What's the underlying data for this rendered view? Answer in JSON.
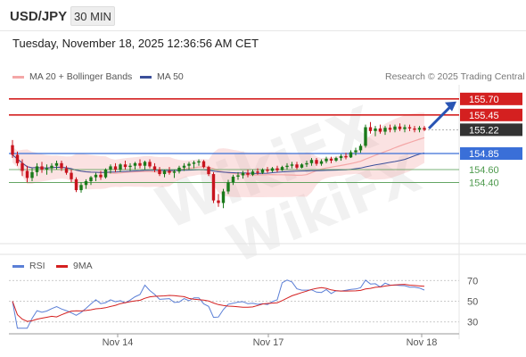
{
  "header": {
    "symbol": "USD/JPY",
    "timeframe": "30 MIN",
    "datetime": "Tuesday, November 18, 2025 12:36:56 AM CET"
  },
  "legend": {
    "ma20_label": "MA 20 + Bollinger Bands",
    "ma50_label": "MA 50",
    "credit": "Research © 2025 Trading Central",
    "rsi_label": "RSI",
    "ma9_label": "9MA"
  },
  "watermark": {
    "text_a": "WikiFX",
    "text_b": "WikiFX"
  },
  "colors": {
    "bullish": "#1a7a1a",
    "bearish": "#c8141e",
    "resistance": "#d42020",
    "pivot": "#3a6fd8",
    "support": "#4e9a4e",
    "ma50": "#3b4f9a",
    "bollinger": "#f4a7a7",
    "current": "#333333",
    "rsi": "#5b7fd6",
    "ma9": "#d42020",
    "arrow": "#2854b4"
  },
  "chart_data": [
    {
      "type": "candlestick",
      "title": "",
      "x_ticks": [
        "Nov 14",
        "Nov 17",
        "Nov 18"
      ],
      "ylim": [
        153.6,
        155.92
      ],
      "levels": [
        {
          "price": 155.7,
          "label": "155.70",
          "kind": "resistance"
        },
        {
          "price": 155.45,
          "label": "155.45",
          "kind": "resistance"
        },
        {
          "price": 155.22,
          "label": "155.22",
          "kind": "current"
        },
        {
          "price": 154.85,
          "label": "154.85",
          "kind": "pivot"
        },
        {
          "price": 154.6,
          "label": "154.60",
          "kind": "support"
        },
        {
          "price": 154.4,
          "label": "154.40",
          "kind": "support"
        }
      ],
      "forecast_arrow": {
        "from_price": 155.24,
        "to_price": 155.66
      },
      "candles": [
        [
          154.98,
          155.06,
          154.78,
          154.83
        ],
        [
          154.83,
          154.88,
          154.66,
          154.7
        ],
        [
          154.7,
          154.76,
          154.5,
          154.58
        ],
        [
          154.58,
          154.66,
          154.4,
          154.47
        ],
        [
          154.47,
          154.62,
          154.42,
          154.56
        ],
        [
          154.56,
          154.7,
          154.5,
          154.65
        ],
        [
          154.65,
          154.72,
          154.55,
          154.6
        ],
        [
          154.6,
          154.68,
          154.52,
          154.62
        ],
        [
          154.62,
          154.7,
          154.55,
          154.66
        ],
        [
          154.66,
          154.74,
          154.6,
          154.7
        ],
        [
          154.7,
          154.74,
          154.58,
          154.62
        ],
        [
          154.62,
          154.66,
          154.52,
          154.55
        ],
        [
          154.55,
          154.6,
          154.4,
          154.45
        ],
        [
          154.45,
          154.48,
          154.25,
          154.28
        ],
        [
          154.28,
          154.4,
          154.24,
          154.36
        ],
        [
          154.36,
          154.45,
          154.3,
          154.42
        ],
        [
          154.42,
          154.5,
          154.36,
          154.48
        ],
        [
          154.48,
          154.55,
          154.42,
          154.52
        ],
        [
          154.52,
          154.58,
          154.44,
          154.48
        ],
        [
          154.48,
          154.62,
          154.46,
          154.6
        ],
        [
          154.6,
          154.68,
          154.54,
          154.65
        ],
        [
          154.65,
          154.7,
          154.56,
          154.6
        ],
        [
          154.6,
          154.7,
          154.56,
          154.68
        ],
        [
          154.68,
          154.74,
          154.6,
          154.64
        ],
        [
          154.64,
          154.7,
          154.58,
          154.66
        ],
        [
          154.66,
          154.72,
          154.6,
          154.7
        ],
        [
          154.7,
          154.76,
          154.62,
          154.66
        ],
        [
          154.66,
          154.74,
          154.6,
          154.72
        ],
        [
          154.72,
          154.76,
          154.62,
          154.65
        ],
        [
          154.65,
          154.7,
          154.56,
          154.6
        ],
        [
          154.6,
          154.64,
          154.5,
          154.53
        ],
        [
          154.53,
          154.6,
          154.48,
          154.58
        ],
        [
          154.58,
          154.64,
          154.52,
          154.55
        ],
        [
          154.55,
          154.6,
          154.47,
          154.57
        ],
        [
          154.57,
          154.66,
          154.54,
          154.63
        ],
        [
          154.63,
          154.7,
          154.58,
          154.66
        ],
        [
          154.66,
          154.72,
          154.6,
          154.69
        ],
        [
          154.69,
          154.74,
          154.62,
          154.71
        ],
        [
          154.71,
          154.76,
          154.66,
          154.73
        ],
        [
          154.73,
          154.75,
          154.62,
          154.64
        ],
        [
          154.64,
          154.66,
          154.5,
          154.53
        ],
        [
          154.53,
          154.56,
          154.08,
          154.12
        ],
        [
          154.12,
          154.22,
          154.02,
          154.08
        ],
        [
          154.08,
          154.3,
          154.0,
          154.26
        ],
        [
          154.26,
          154.44,
          154.22,
          154.4
        ],
        [
          154.4,
          154.52,
          154.36,
          154.49
        ],
        [
          154.49,
          154.56,
          154.44,
          154.51
        ],
        [
          154.51,
          154.58,
          154.46,
          154.55
        ],
        [
          154.55,
          154.6,
          154.48,
          154.52
        ],
        [
          154.52,
          154.6,
          154.5,
          154.57
        ],
        [
          154.57,
          154.62,
          154.52,
          154.55
        ],
        [
          154.55,
          154.62,
          154.53,
          154.6
        ],
        [
          154.6,
          154.64,
          154.55,
          154.58
        ],
        [
          154.58,
          154.64,
          154.56,
          154.62
        ],
        [
          154.62,
          154.66,
          154.56,
          154.59
        ],
        [
          154.59,
          154.66,
          154.58,
          154.64
        ],
        [
          154.64,
          154.7,
          154.6,
          154.66
        ],
        [
          154.66,
          154.72,
          154.62,
          154.68
        ],
        [
          154.68,
          154.72,
          154.6,
          154.63
        ],
        [
          154.63,
          154.7,
          154.62,
          154.68
        ],
        [
          154.68,
          154.74,
          154.64,
          154.7
        ],
        [
          154.7,
          154.78,
          154.66,
          154.75
        ],
        [
          154.75,
          154.78,
          154.66,
          154.69
        ],
        [
          154.69,
          154.76,
          154.66,
          154.73
        ],
        [
          154.73,
          154.8,
          154.7,
          154.77
        ],
        [
          154.77,
          154.8,
          154.7,
          154.74
        ],
        [
          154.74,
          154.8,
          154.72,
          154.78
        ],
        [
          154.78,
          154.84,
          154.74,
          154.81
        ],
        [
          154.81,
          154.86,
          154.76,
          154.79
        ],
        [
          154.79,
          154.9,
          154.78,
          154.87
        ],
        [
          154.87,
          154.94,
          154.82,
          154.9
        ],
        [
          154.9,
          155.0,
          154.86,
          154.97
        ],
        [
          154.97,
          155.3,
          154.94,
          155.26
        ],
        [
          155.26,
          155.34,
          155.16,
          155.2
        ],
        [
          155.2,
          155.28,
          155.12,
          155.24
        ],
        [
          155.24,
          155.3,
          155.16,
          155.19
        ],
        [
          155.19,
          155.28,
          155.14,
          155.25
        ],
        [
          155.25,
          155.3,
          155.18,
          155.22
        ],
        [
          155.22,
          155.3,
          155.18,
          155.27
        ],
        [
          155.27,
          155.32,
          155.2,
          155.23
        ],
        [
          155.23,
          155.3,
          155.18,
          155.26
        ],
        [
          155.26,
          155.3,
          155.2,
          155.24
        ],
        [
          155.24,
          155.28,
          155.18,
          155.22
        ],
        [
          155.22,
          155.28,
          155.18,
          155.25
        ],
        [
          155.25,
          155.28,
          155.2,
          155.22
        ]
      ]
    },
    {
      "type": "line",
      "title": "",
      "series": [
        {
          "name": "RSI"
        },
        {
          "name": "9MA"
        }
      ],
      "y_ticks": [
        70,
        50,
        30
      ],
      "ylim": [
        22,
        78
      ]
    }
  ]
}
